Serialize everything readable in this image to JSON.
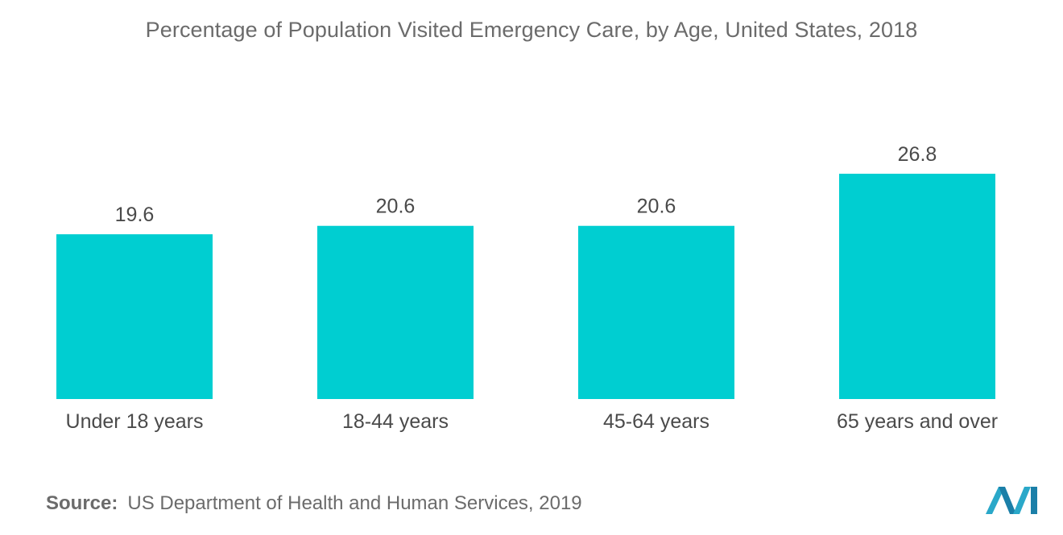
{
  "chart_data": {
    "type": "bar",
    "title": "Percentage of Population Visited Emergency Care, by Age, United States, 2018",
    "categories": [
      "Under 18 years",
      "18-44 years",
      "45-64 years",
      "65 years and over"
    ],
    "values": [
      19.6,
      20.6,
      20.6,
      26.8
    ],
    "data_labels": [
      "19.6",
      "20.6",
      "20.6",
      "26.8"
    ],
    "xlabel": "",
    "ylabel": "",
    "ylim": [
      0,
      30
    ],
    "grid": false,
    "legend": "none",
    "axis_visible": false,
    "bar_color": "#00ced1"
  },
  "source": {
    "label": "Source:",
    "text": "US Department of Health and Human Services, 2019"
  },
  "logo": {
    "icon": "mordor-intelligence-logo-icon",
    "color": "#2aa8c9"
  }
}
